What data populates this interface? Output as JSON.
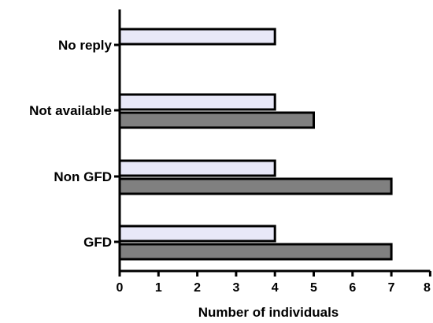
{
  "chart_data": {
    "type": "bar",
    "orientation": "horizontal",
    "categories": [
      "No reply",
      "Not available",
      "Non GFD",
      "GFD"
    ],
    "series": [
      {
        "values": [
          4,
          4,
          4,
          4
        ],
        "color": "#e8e8f8"
      },
      {
        "values": [
          null,
          5,
          7,
          7
        ],
        "color": "#808080"
      }
    ],
    "xlabel": "Number of individuals",
    "ylabel": "",
    "xlim": [
      0,
      8
    ],
    "x_ticks": [
      "0",
      "1",
      "2",
      "3",
      "4",
      "5",
      "6",
      "7",
      "8"
    ],
    "grid": false
  }
}
